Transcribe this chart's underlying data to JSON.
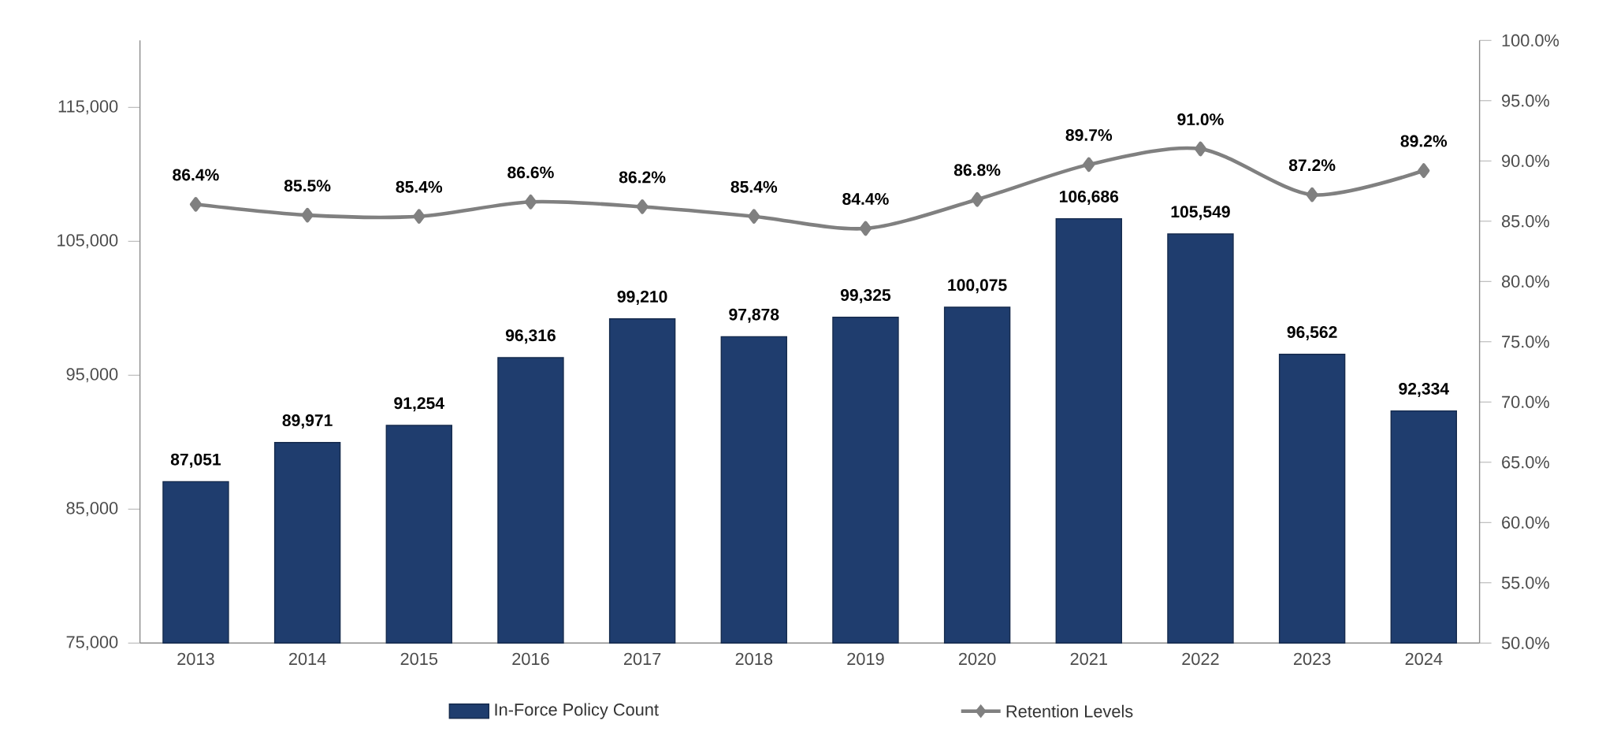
{
  "chart_data": {
    "type": "bar",
    "categories": [
      "2013",
      "2014",
      "2015",
      "2016",
      "2017",
      "2018",
      "2019",
      "2020",
      "2021",
      "2022",
      "2023",
      "2024"
    ],
    "series": [
      {
        "name": "In-Force Policy Count",
        "color": "#1f3d6e",
        "values": [
          87051,
          89971,
          91254,
          96316,
          99210,
          97878,
          99325,
          100075,
          106686,
          105549,
          96562,
          92334
        ],
        "value_labels": [
          "87,051",
          "89,971",
          "91,254",
          "96,316",
          "99,210",
          "97,878",
          "99,325",
          "100,075",
          "106,686",
          "105,549",
          "96,562",
          "92,334"
        ]
      },
      {
        "name": "Retention Levels",
        "type": "line",
        "axis": "y2",
        "color": "#808080",
        "marker": "diamond",
        "values": [
          86.4,
          85.5,
          85.4,
          86.6,
          86.2,
          85.4,
          84.4,
          86.8,
          89.7,
          91.0,
          87.2,
          89.2
        ],
        "value_labels": [
          "86.4%",
          "85.5%",
          "85.4%",
          "86.6%",
          "86.2%",
          "85.4%",
          "84.4%",
          "86.8%",
          "89.7%",
          "91.0%",
          "87.2%",
          "89.2%"
        ]
      }
    ],
    "ylim": [
      75000,
      120000
    ],
    "yticks": [
      {
        "value": 75000,
        "label": "75,000"
      },
      {
        "value": 85000,
        "label": "85,000"
      },
      {
        "value": 95000,
        "label": "95,000"
      },
      {
        "value": 105000,
        "label": "105,000"
      },
      {
        "value": 115000,
        "label": "115,000"
      }
    ],
    "y2lim": [
      50,
      100
    ],
    "y2ticks": [
      {
        "value": 50,
        "label": "50.0%"
      },
      {
        "value": 55,
        "label": "55.0%"
      },
      {
        "value": 60,
        "label": "60.0%"
      },
      {
        "value": 65,
        "label": "65.0%"
      },
      {
        "value": 70,
        "label": "70.0%"
      },
      {
        "value": 75,
        "label": "75.0%"
      },
      {
        "value": 80,
        "label": "80.0%"
      },
      {
        "value": 85,
        "label": "85.0%"
      },
      {
        "value": 90,
        "label": "90.0%"
      },
      {
        "value": 95,
        "label": "95.0%"
      },
      {
        "value": 100,
        "label": "100.0%"
      }
    ],
    "legend": "bottom",
    "grid": false
  }
}
